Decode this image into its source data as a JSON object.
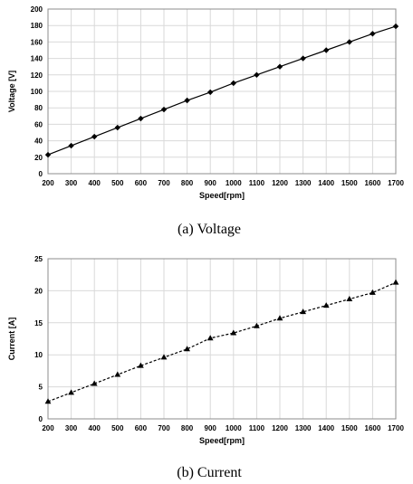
{
  "charts": [
    {
      "caption": "(a)  Voltage",
      "chart_data": {
        "type": "line",
        "x": [
          200,
          300,
          400,
          500,
          600,
          700,
          800,
          900,
          1000,
          1100,
          1200,
          1300,
          1400,
          1500,
          1600,
          1700
        ],
        "series": [
          {
            "values": [
              23,
              34,
              45,
              56,
              67,
              78,
              89,
              99,
              110,
              120,
              130,
              140,
              150,
              160,
              170,
              179
            ],
            "marker": "diamond",
            "line": "solid",
            "color": "#000000"
          }
        ],
        "xlabel": "Speed[rpm]",
        "ylabel": "Voltage [V]",
        "xlim": [
          200,
          1700
        ],
        "ylim": [
          0,
          200
        ],
        "xticks": [
          "200",
          "300",
          "400",
          "500",
          "600",
          "700",
          "800",
          "900",
          "1000",
          "1100",
          "1200",
          "1300",
          "1400",
          "1500",
          "1600",
          "1700"
        ],
        "yticks": [
          "0",
          "20",
          "40",
          "60",
          "80",
          "100",
          "120",
          "140",
          "160",
          "180",
          "200"
        ],
        "grid": true
      }
    },
    {
      "caption": "(b)  Current",
      "chart_data": {
        "type": "line",
        "x": [
          200,
          300,
          400,
          500,
          600,
          700,
          800,
          900,
          1000,
          1100,
          1200,
          1300,
          1400,
          1500,
          1600,
          1700
        ],
        "series": [
          {
            "values": [
              2.7,
              4.1,
              5.5,
              6.9,
              8.3,
              9.6,
              10.9,
              12.6,
              13.4,
              14.5,
              15.7,
              16.7,
              17.7,
              18.7,
              19.7,
              21.3
            ],
            "marker": "triangle",
            "line": "dashed",
            "color": "#000000"
          }
        ],
        "xlabel": "Speed[rpm]",
        "ylabel": "Current [A]",
        "xlim": [
          200,
          1700
        ],
        "ylim": [
          0,
          25
        ],
        "xticks": [
          "200",
          "300",
          "400",
          "500",
          "600",
          "700",
          "800",
          "900",
          "1000",
          "1100",
          "1200",
          "1300",
          "1400",
          "1500",
          "1600",
          "1700"
        ],
        "yticks": [
          "0",
          "5",
          "10",
          "15",
          "20",
          "25"
        ],
        "grid": true
      }
    }
  ]
}
